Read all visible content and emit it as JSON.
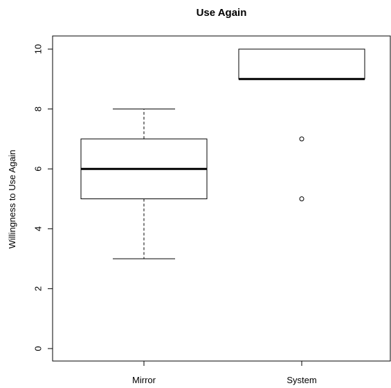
{
  "chart_data": {
    "type": "boxplot",
    "title": "Use Again",
    "xlabel": "",
    "ylabel": "Willingness to Use Again",
    "ylim": [
      0,
      10
    ],
    "yticks": [
      0,
      2,
      4,
      6,
      8,
      10
    ],
    "categories": [
      "Mirror",
      "System"
    ],
    "boxes": [
      {
        "name": "Mirror",
        "whisker_low": 3,
        "q1": 5,
        "median": 6,
        "q3": 7,
        "whisker_high": 8,
        "outliers": []
      },
      {
        "name": "System",
        "whisker_low": 9,
        "q1": 9,
        "median": 9,
        "q3": 10,
        "whisker_high": 10,
        "outliers": [
          5,
          7
        ]
      }
    ],
    "grid": false,
    "legend": "none"
  }
}
